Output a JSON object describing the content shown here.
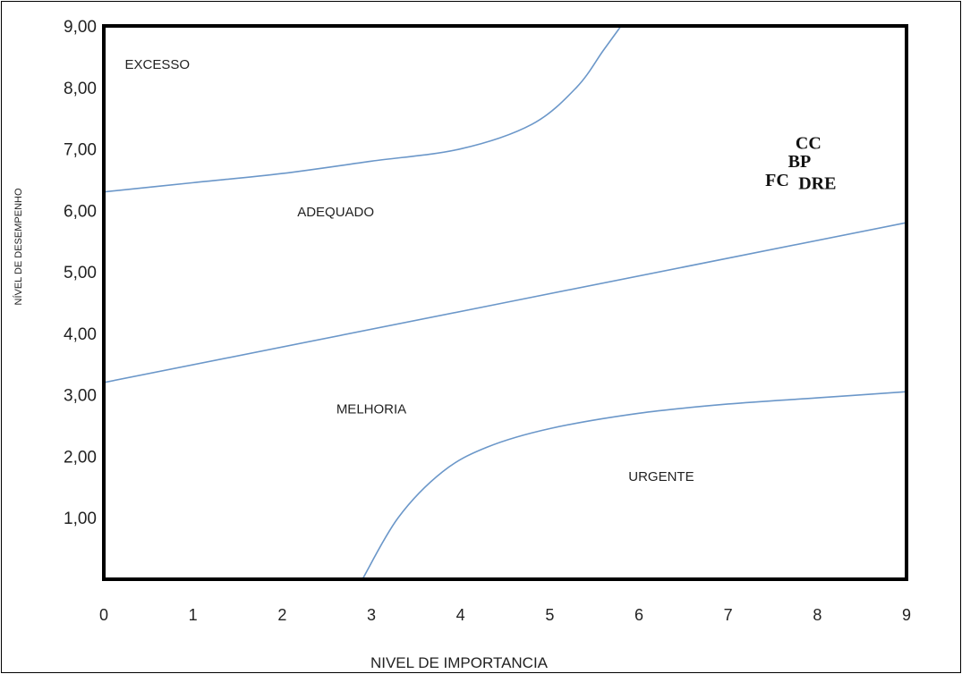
{
  "chart_data": {
    "type": "scatter",
    "title": "",
    "xlabel": "NIVEL DE IMPORTANCIA",
    "ylabel": "NÍVEL DE DESEMPENHO",
    "xlim": [
      0,
      9
    ],
    "ylim": [
      0,
      9
    ],
    "x_ticks": [
      "0",
      "1",
      "2",
      "3",
      "4",
      "5",
      "6",
      "7",
      "8",
      "9"
    ],
    "y_ticks": [
      "1,00",
      "2,00",
      "3,00",
      "4,00",
      "5,00",
      "6,00",
      "7,00",
      "8,00",
      "9,00"
    ],
    "grid": false,
    "zones": [
      {
        "label": "EXCESSO",
        "x": 0.6,
        "y": 8.3
      },
      {
        "label": "ADEQUADO",
        "x": 2.6,
        "y": 5.9
      },
      {
        "label": "MELHORIA",
        "x": 3.0,
        "y": 2.7
      },
      {
        "label": "URGENTE",
        "x": 6.25,
        "y": 1.6
      }
    ],
    "boundaries": [
      {
        "name": "excesso-adequado",
        "points": [
          [
            0,
            6.3
          ],
          [
            1,
            6.45
          ],
          [
            2,
            6.6
          ],
          [
            3,
            6.8
          ],
          [
            4,
            7.0
          ],
          [
            4.8,
            7.4
          ],
          [
            5.3,
            8.0
          ],
          [
            5.6,
            8.6
          ],
          [
            5.8,
            9.0
          ]
        ]
      },
      {
        "name": "adequado-melhoria",
        "points": [
          [
            0,
            3.2
          ],
          [
            9,
            5.8
          ]
        ]
      },
      {
        "name": "melhoria-urgente",
        "points": [
          [
            2.9,
            0.0
          ],
          [
            3.3,
            1.0
          ],
          [
            3.8,
            1.75
          ],
          [
            4.3,
            2.15
          ],
          [
            5.0,
            2.45
          ],
          [
            6.0,
            2.7
          ],
          [
            7.0,
            2.85
          ],
          [
            8.0,
            2.95
          ],
          [
            9.0,
            3.05
          ]
        ]
      }
    ],
    "points": [
      {
        "label": "CC",
        "x": 7.9,
        "y": 7.0
      },
      {
        "label": "BP",
        "x": 7.8,
        "y": 6.7
      },
      {
        "label": "FC",
        "x": 7.55,
        "y": 6.4
      },
      {
        "label": "DRE",
        "x": 8.0,
        "y": 6.35
      }
    ],
    "colors": {
      "curve": "#6b97c9",
      "frame": "#000000",
      "text": "#222222"
    }
  }
}
